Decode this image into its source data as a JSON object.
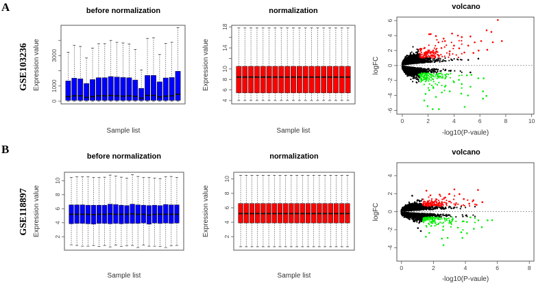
{
  "panels": [
    {
      "letter": "A",
      "dataset": "GSE103236"
    },
    {
      "letter": "B",
      "dataset": "GSE118897"
    }
  ],
  "chart_data": [
    {
      "id": "A-before",
      "type": "boxplot",
      "title": "before normalization",
      "xlabel": "Sample list",
      "ylabel": "Expression value",
      "fill": "#0000ff",
      "ylim": [
        -180,
        5000
      ],
      "yticks": [
        0,
        1000,
        2000,
        3000,
        4000
      ],
      "ytick_labels": [
        "0",
        "1000",
        "",
        "3000",
        ""
      ],
      "boxes": {
        "low": [
          0,
          0,
          0,
          0,
          0,
          0,
          0,
          0,
          0,
          0,
          0,
          0,
          0,
          0,
          0,
          0,
          0,
          0,
          0
        ],
        "q1": [
          50,
          50,
          50,
          50,
          50,
          50,
          50,
          50,
          50,
          50,
          50,
          50,
          50,
          50,
          50,
          50,
          50,
          50,
          50
        ],
        "median": [
          300,
          350,
          350,
          250,
          300,
          350,
          350,
          380,
          350,
          330,
          350,
          320,
          200,
          380,
          380,
          280,
          330,
          350,
          450
        ],
        "q3": [
          1333,
          1515,
          1470,
          1167,
          1424,
          1545,
          1545,
          1621,
          1591,
          1561,
          1545,
          1394,
          848,
          1697,
          1697,
          1273,
          1530,
          1561,
          1970
        ],
        "high": [
          3227,
          3682,
          3606,
          2848,
          3500,
          3788,
          3788,
          4000,
          3879,
          3833,
          3773,
          3409,
          2061,
          4136,
          4182,
          3076,
          3803,
          3879,
          4848
        ]
      }
    },
    {
      "id": "A-norm",
      "type": "boxplot",
      "title": "normalization",
      "xlabel": "Sample list",
      "ylabel": "Expression value",
      "fill": "#ff0000",
      "ylim": [
        3.35,
        18.3
      ],
      "yticks": [
        4,
        6,
        8,
        10,
        12,
        14,
        16,
        18
      ],
      "ytick_labels": [
        "4",
        "6",
        "8",
        "10",
        "",
        "14",
        "",
        "18"
      ],
      "uniform_box": {
        "count": 19,
        "low": 4.0,
        "q1": 5.45,
        "median": 8.45,
        "q3": 10.5,
        "high": 17.8
      }
    },
    {
      "id": "A-volcano",
      "type": "scatter",
      "title": "volcano",
      "xlabel": "-log10(P-vaule)",
      "ylabel": "logFC",
      "xlim": [
        -0.42,
        10.18
      ],
      "ylim": [
        -6.5,
        6.47
      ],
      "xticks": [
        0,
        2,
        4,
        6,
        8,
        10
      ],
      "yticks": [
        -6,
        -4,
        -2,
        0,
        2,
        4,
        6
      ],
      "thresholds": {
        "logFC": 1,
        "neg_log10_p": 1.3
      },
      "colors": {
        "up": "#ff0000",
        "down": "#00ee00",
        "ns": "#000000"
      },
      "spread": 0.55,
      "up_points": [
        [
          7.39,
          6.08
        ],
        [
          6.52,
          4.7
        ],
        [
          6.89,
          4.49
        ],
        [
          7.0,
          3.11
        ],
        [
          7.7,
          3.27
        ],
        [
          6.57,
          2.1
        ],
        [
          6.1,
          3.27
        ],
        [
          5.6,
          3.1
        ],
        [
          5.27,
          3.88
        ],
        [
          3.85,
          4.27
        ],
        [
          2.08,
          4.18
        ],
        [
          2.6,
          3.94
        ],
        [
          4.3,
          4.0
        ],
        [
          4.6,
          3.8
        ],
        [
          5.9,
          2.0
        ],
        [
          5.5,
          1.68
        ],
        [
          5.1,
          2.66
        ],
        [
          4.8,
          1.74
        ],
        [
          4.0,
          2.66
        ],
        [
          3.3,
          3.27
        ],
        [
          2.8,
          3.1
        ],
        [
          1.73,
          2.35
        ],
        [
          3.67,
          1.9
        ],
        [
          2.2,
          4.2
        ],
        [
          3.2,
          3.6
        ],
        [
          4.4,
          2.3
        ]
      ],
      "down_points": [
        [
          2.83,
          -5.83
        ],
        [
          2.35,
          -5.83
        ],
        [
          1.96,
          -5.43
        ],
        [
          4.82,
          -5.53
        ],
        [
          1.7,
          -4.67
        ],
        [
          6.24,
          -4.43
        ],
        [
          6.5,
          -4.06
        ],
        [
          6.24,
          -3.45
        ],
        [
          2.6,
          -4.2
        ],
        [
          3.06,
          -3.6
        ],
        [
          3.67,
          -3.45
        ],
        [
          5.08,
          -4.0
        ],
        [
          4.56,
          -3.75
        ],
        [
          5.27,
          -2.84
        ],
        [
          5.88,
          -1.71
        ],
        [
          6.29,
          -1.71
        ],
        [
          5.0,
          -1.31
        ],
        [
          5.35,
          -1.25
        ],
        [
          4.0,
          -2.23
        ],
        [
          2.08,
          -3.3
        ],
        [
          3.3,
          -2.84
        ],
        [
          4.38,
          -1.92
        ],
        [
          1.8,
          -3.8
        ],
        [
          2.4,
          -3.0
        ]
      ],
      "ns_points": [
        [
          5.88,
          0.92
        ],
        [
          5.1,
          0.75
        ],
        [
          5.27,
          -0.92
        ]
      ]
    },
    {
      "id": "B-before",
      "type": "boxplot",
      "title": "before normalization",
      "xlabel": "Sample list",
      "ylabel": "Expression value",
      "fill": "#0000ff",
      "ylim": [
        0.08,
        11.2
      ],
      "yticks": [
        2,
        4,
        6,
        8,
        10
      ],
      "ytick_labels": [
        "2",
        "4",
        "6",
        "8",
        "10"
      ],
      "boxes": {
        "low": [
          0.85,
          0.75,
          0.65,
          0.65,
          0.75,
          0.6,
          0.75,
          0.55,
          0.8,
          0.6,
          0.7,
          0.75,
          0.45,
          0.8,
          0.65,
          0.65,
          0.6,
          0.45,
          0.7,
          0.75
        ],
        "q1": [
          3.85,
          3.9,
          3.9,
          3.85,
          3.8,
          3.9,
          3.9,
          3.85,
          3.9,
          3.85,
          3.9,
          3.9,
          3.9,
          3.95,
          3.8,
          3.95,
          3.9,
          3.95,
          3.9,
          3.95
        ],
        "median": [
          5.2,
          5.2,
          5.2,
          5.2,
          5.15,
          5.2,
          5.2,
          5.25,
          5.2,
          5.2,
          5.2,
          5.25,
          5.2,
          5.2,
          5.1,
          5.2,
          5.2,
          5.2,
          5.2,
          5.2
        ],
        "q3": [
          6.55,
          6.55,
          6.55,
          6.5,
          6.5,
          6.5,
          6.5,
          6.65,
          6.6,
          6.5,
          6.45,
          6.65,
          6.55,
          6.5,
          6.45,
          6.5,
          6.45,
          6.6,
          6.55,
          6.55
        ],
        "high": [
          10.45,
          10.55,
          10.55,
          10.55,
          10.45,
          10.45,
          10.5,
          10.8,
          10.65,
          10.5,
          10.35,
          10.85,
          10.6,
          10.45,
          10.45,
          10.35,
          10.3,
          10.55,
          10.6,
          10.45
        ]
      }
    },
    {
      "id": "B-norm",
      "type": "boxplot",
      "title": "normalization",
      "xlabel": "Sample list",
      "ylabel": "Expression value",
      "fill": "#ff0000",
      "ylim": [
        0.12,
        10.93
      ],
      "yticks": [
        2,
        4,
        6,
        8,
        10
      ],
      "ytick_labels": [
        "2",
        "4",
        "6",
        "8",
        "10"
      ],
      "uniform_box": {
        "count": 20,
        "low": 0.6,
        "q1": 3.9,
        "median": 5.2,
        "q3": 6.6,
        "high": 10.5
      }
    },
    {
      "id": "B-volcano",
      "type": "scatter",
      "title": "volcano",
      "xlabel": "-log10(P-vaule)",
      "ylabel": "logFC",
      "xlim": [
        -0.29,
        8.29
      ],
      "ylim": [
        -5.49,
        5.44
      ],
      "xticks": [
        0,
        2,
        4,
        6,
        8
      ],
      "yticks": [
        -4,
        -2,
        0,
        2,
        4
      ],
      "thresholds": {
        "logFC": 0.585,
        "neg_log10_p": 1.3
      },
      "colors": {
        "up": "#ff0000",
        "down": "#00ee00",
        "ns": "#000000"
      },
      "spread": 0.33,
      "up_points": [
        [
          4.79,
          2.41
        ],
        [
          3.31,
          2.48
        ],
        [
          3.0,
          1.97
        ],
        [
          1.56,
          2.33
        ],
        [
          1.81,
          1.82
        ],
        [
          2.39,
          1.9
        ],
        [
          2.74,
          1.57
        ],
        [
          3.63,
          1.95
        ],
        [
          4.5,
          1.27
        ],
        [
          5.06,
          1.06
        ],
        [
          4.24,
          0.89
        ],
        [
          4.7,
          0.76
        ],
        [
          3.9,
          1.4
        ]
      ],
      "down_points": [
        [
          2.63,
          -3.72
        ],
        [
          2.53,
          -2.99
        ],
        [
          2.89,
          -2.91
        ],
        [
          3.81,
          -2.91
        ],
        [
          1.53,
          -2.78
        ],
        [
          1.74,
          -2.35
        ],
        [
          2.6,
          -2.03
        ],
        [
          3.74,
          -2.28
        ],
        [
          4.1,
          -2.4
        ],
        [
          4.53,
          -1.9
        ],
        [
          5.03,
          -1.72
        ],
        [
          5.39,
          -0.96
        ],
        [
          5.67,
          -0.94
        ],
        [
          4.81,
          -0.96
        ],
        [
          4.31,
          -0.63
        ],
        [
          4.1,
          -1.14
        ],
        [
          3.53,
          -1.77
        ]
      ],
      "ns_points": [
        [
          0.67,
          1.77
        ],
        [
          1.03,
          -1.82
        ],
        [
          1.21,
          -2.15
        ]
      ]
    }
  ]
}
